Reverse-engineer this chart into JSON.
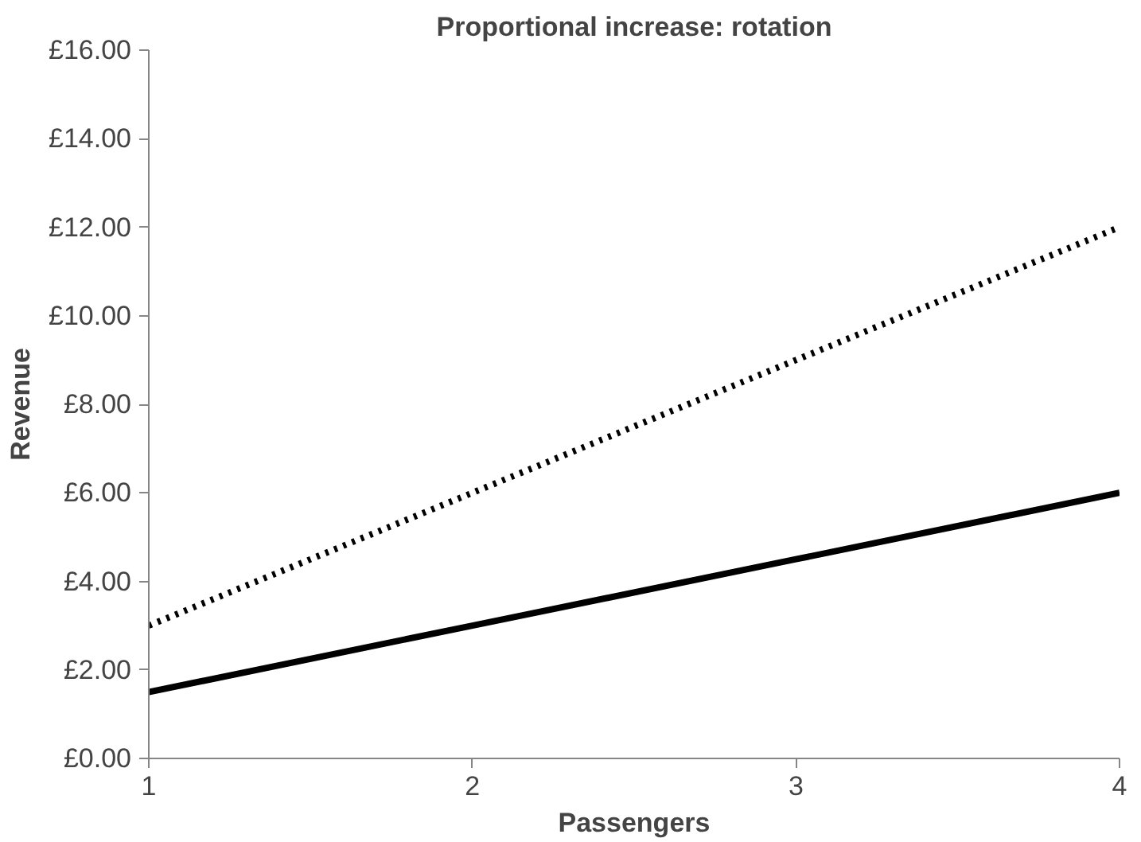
{
  "chart_data": {
    "type": "line",
    "title": "Proportional increase: rotation",
    "xlabel": "Passengers",
    "ylabel": "Revenue",
    "x": [
      1,
      2,
      3,
      4
    ],
    "series": [
      {
        "color": "#000000",
        "line_style": "dotted",
        "values": [
          3,
          6,
          9,
          12
        ]
      },
      {
        "color": "#000000",
        "line_style": "solid",
        "values": [
          1.5,
          3,
          4.5,
          6
        ]
      }
    ],
    "xlim": [
      1,
      4
    ],
    "xticks": [
      1,
      2,
      3,
      4
    ],
    "ylim": [
      0,
      16
    ],
    "yticks": [
      {
        "value": 0,
        "label": "£0.00"
      },
      {
        "value": 2,
        "label": "£2.00"
      },
      {
        "value": 4,
        "label": "£4.00"
      },
      {
        "value": 6,
        "label": "£6.00"
      },
      {
        "value": 8,
        "label": "£8.00"
      },
      {
        "value": 10,
        "label": "£10.00"
      },
      {
        "value": 12,
        "label": "£12.00"
      },
      {
        "value": 14,
        "label": "£14.00"
      },
      {
        "value": 16,
        "label": "£16.00"
      }
    ],
    "marker": "none"
  }
}
